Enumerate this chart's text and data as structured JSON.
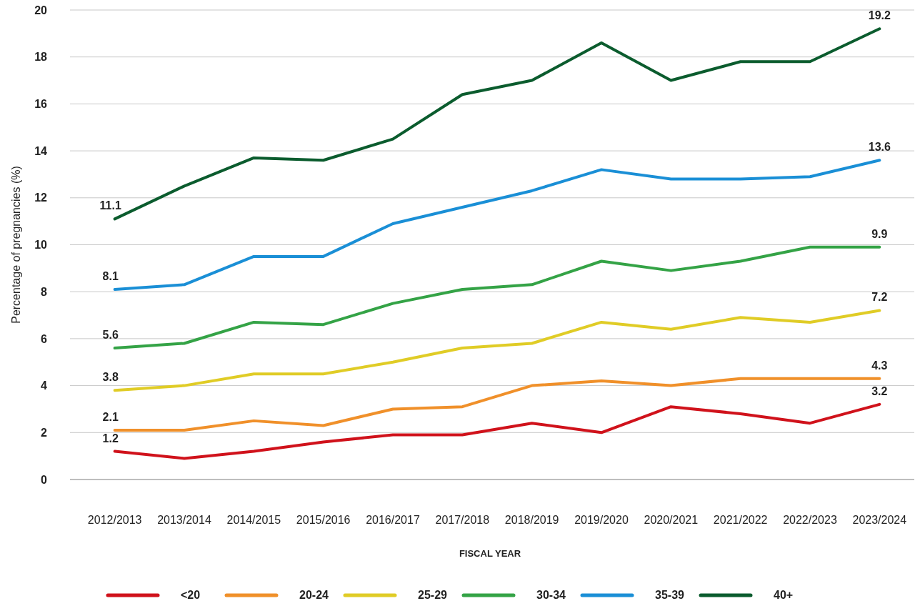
{
  "chart_data": {
    "type": "line",
    "xlabel": "FISCAL YEAR",
    "ylabel": "Percentage of pregnancies (%)",
    "categories": [
      "2012/2013",
      "2013/2014",
      "2014/2015",
      "2015/2016",
      "2016/2017",
      "2017/2018",
      "2018/2019",
      "2019/2020",
      "2020/2021",
      "2021/2022",
      "2022/2023",
      "2023/2024"
    ],
    "ylim": [
      0,
      20
    ],
    "yticks": [
      0,
      2,
      4,
      6,
      8,
      10,
      12,
      14,
      16,
      18,
      20
    ],
    "grid": "y",
    "legend": "bottom",
    "marker": "none",
    "line_style": "solid",
    "series": [
      {
        "name": "<20",
        "color": "#d0121b",
        "values": [
          1.2,
          0.9,
          1.2,
          1.6,
          1.9,
          1.9,
          2.4,
          2.0,
          3.1,
          2.8,
          2.4,
          3.2
        ],
        "value_labels": [
          "1.2",
          null,
          null,
          null,
          null,
          null,
          null,
          null,
          null,
          null,
          null,
          "3.2"
        ]
      },
      {
        "name": "20-24",
        "color": "#f0902a",
        "values": [
          2.1,
          2.1,
          2.5,
          2.3,
          3.0,
          3.1,
          4.0,
          4.2,
          4.0,
          4.3,
          4.3,
          4.3
        ],
        "value_labels": [
          "2.1",
          null,
          null,
          null,
          null,
          null,
          null,
          null,
          null,
          null,
          null,
          "4.3"
        ]
      },
      {
        "name": "25-29",
        "color": "#e0cc26",
        "values": [
          3.8,
          4.0,
          4.5,
          4.5,
          5.0,
          5.6,
          5.8,
          6.7,
          6.4,
          6.9,
          6.7,
          7.2
        ],
        "value_labels": [
          "3.8",
          null,
          null,
          null,
          null,
          null,
          null,
          null,
          null,
          null,
          null,
          "7.2"
        ]
      },
      {
        "name": "30-34",
        "color": "#34a346",
        "values": [
          5.6,
          5.8,
          6.7,
          6.6,
          7.5,
          8.1,
          8.3,
          9.3,
          8.9,
          9.3,
          9.9,
          9.9
        ],
        "value_labels": [
          "5.6",
          null,
          null,
          null,
          null,
          null,
          null,
          null,
          null,
          null,
          null,
          "9.9"
        ]
      },
      {
        "name": "35-39",
        "color": "#1a8fd6",
        "values": [
          8.1,
          8.3,
          9.5,
          9.5,
          10.9,
          11.6,
          12.3,
          13.2,
          12.8,
          12.8,
          12.9,
          13.6
        ],
        "value_labels": [
          "8.1",
          null,
          null,
          null,
          null,
          null,
          null,
          null,
          null,
          null,
          null,
          "13.6"
        ]
      },
      {
        "name": "40+",
        "color": "#0b5c2e",
        "values": [
          11.1,
          12.5,
          13.7,
          13.6,
          14.5,
          16.4,
          17.0,
          18.6,
          17.0,
          17.8,
          17.8,
          19.2
        ],
        "value_labels": [
          "11.1",
          null,
          null,
          null,
          null,
          null,
          null,
          null,
          null,
          null,
          null,
          "19.2"
        ]
      }
    ]
  }
}
